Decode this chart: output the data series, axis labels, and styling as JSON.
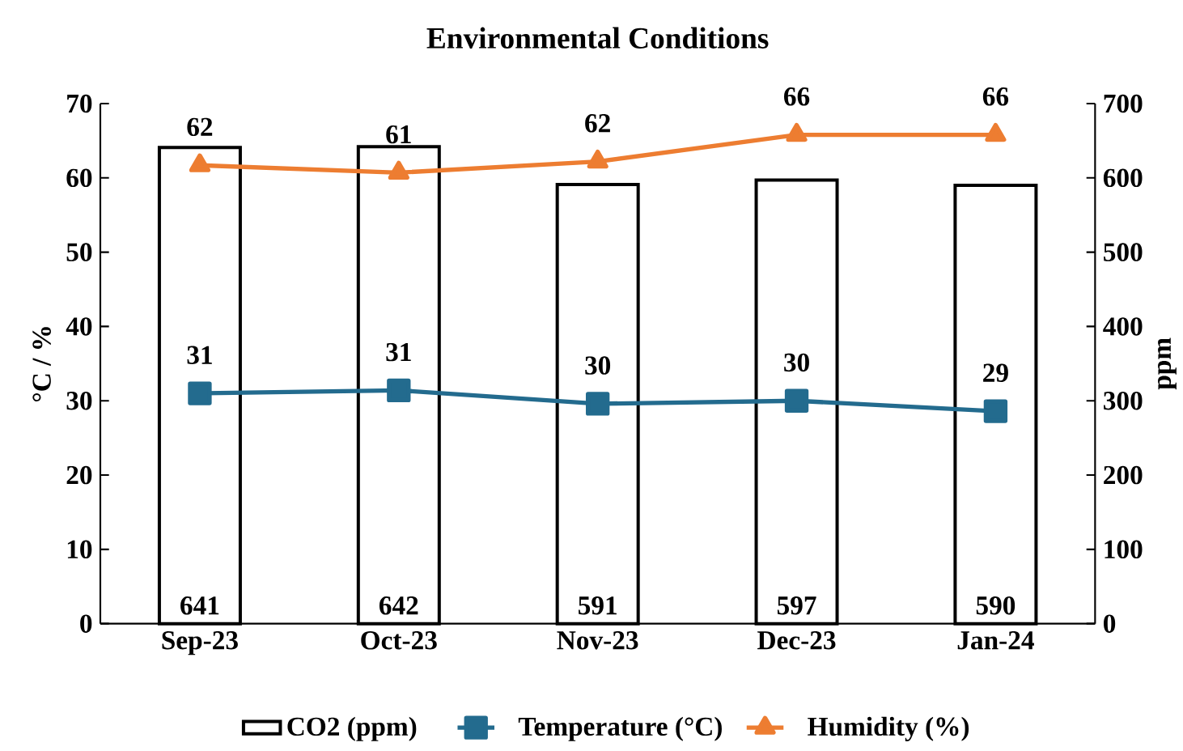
{
  "chart_data": {
    "type": "bar",
    "title": "Environmental Conditions",
    "ylabel": "°C / %",
    "y2label": "ppm",
    "categories": [
      "Sep-23",
      "Oct-23",
      "Nov-23",
      "Dec-23",
      "Jan-24"
    ],
    "series": [
      {
        "name": "CO2 (ppm)",
        "axis": "y2",
        "color": "#ffffff",
        "values": [
          641,
          642,
          591,
          597,
          590
        ],
        "value_labels": [
          "641",
          "642",
          "591",
          "597",
          "590"
        ]
      },
      {
        "name": "Temperature (°C)",
        "type": "line",
        "marker": "square",
        "color": "#236b8e",
        "values": [
          31.0,
          31.4,
          29.6,
          30.0,
          28.6
        ],
        "value_labels": [
          "31",
          "31",
          "30",
          "30",
          "29"
        ]
      },
      {
        "name": "Humidity (%)",
        "type": "line",
        "marker": "triangle",
        "color": "#ed7d31",
        "values": [
          61.7,
          60.7,
          62.2,
          65.8,
          65.8
        ],
        "value_labels": [
          "62",
          "61",
          "62",
          "66",
          "66"
        ]
      }
    ],
    "ylim": [
      0,
      70
    ],
    "yticks": [
      0,
      10,
      20,
      30,
      40,
      50,
      60,
      70
    ],
    "y2lim": [
      0,
      700
    ],
    "y2ticks": [
      0,
      100,
      200,
      300,
      400,
      500,
      600,
      700
    ],
    "legend": "bottom"
  }
}
